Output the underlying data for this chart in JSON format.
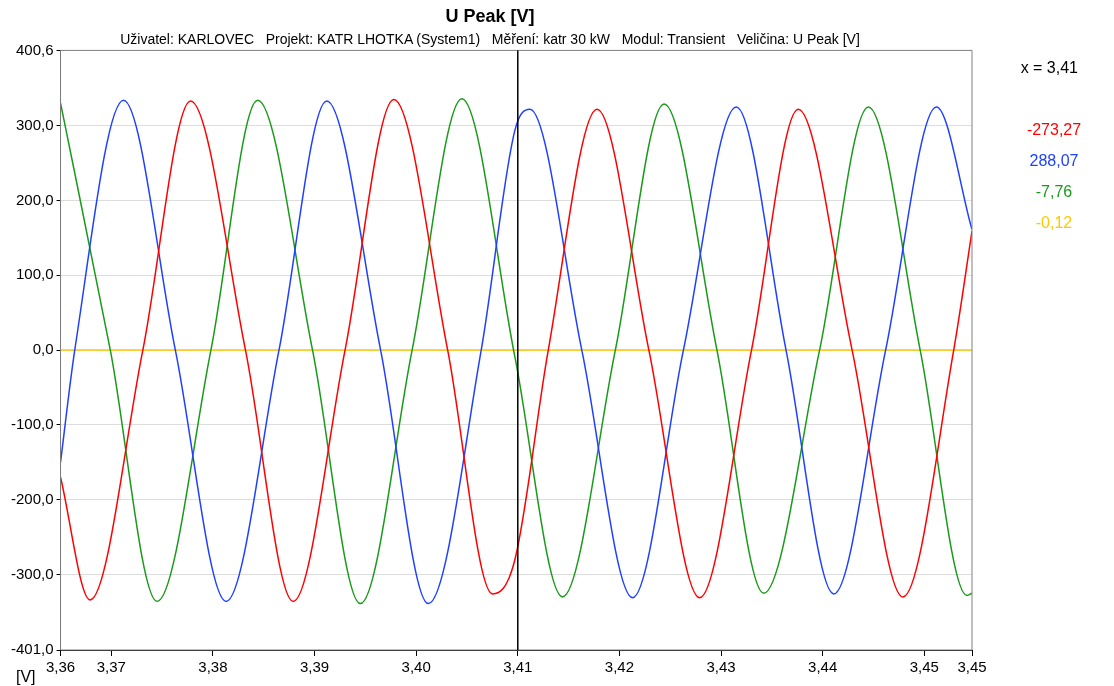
{
  "chart_data": {
    "type": "line",
    "title": "U Peak [V]",
    "subtitle": "Uživatel: KARLOVEC   Projekt: KATR LHOTKA (System1)   Měření: katr 30 kW   Modul: Transient   Veličina: U Peak [V]",
    "ylabel": "[V]",
    "xlim": [
      3.365,
      3.4547
    ],
    "xticks": [
      {
        "value": 3.365,
        "label": "3,36"
      },
      {
        "value": 3.37,
        "label": "3,37"
      },
      {
        "value": 3.38,
        "label": "3,38"
      },
      {
        "value": 3.39,
        "label": "3,39"
      },
      {
        "value": 3.4,
        "label": "3,40"
      },
      {
        "value": 3.41,
        "label": "3,41"
      },
      {
        "value": 3.42,
        "label": "3,42"
      },
      {
        "value": 3.43,
        "label": "3,43"
      },
      {
        "value": 3.44,
        "label": "3,44"
      },
      {
        "value": 3.45,
        "label": "3,45"
      },
      {
        "value": 3.4547,
        "label": "3,45"
      }
    ],
    "ylim": [
      -401,
      400.6
    ],
    "yticks": [
      {
        "value": -401,
        "label": "-401,0"
      },
      {
        "value": -300,
        "label": "-300,0"
      },
      {
        "value": -200,
        "label": "-200,0"
      },
      {
        "value": -100,
        "label": "-100,0"
      },
      {
        "value": 0,
        "label": "0,0"
      },
      {
        "value": 100,
        "label": "100,0"
      },
      {
        "value": 200,
        "label": "200,0"
      },
      {
        "value": 300,
        "label": "300,0"
      },
      {
        "value": 400.6,
        "label": "400,6"
      }
    ],
    "grid": "y",
    "legend": false,
    "ref_lines": [
      {
        "axis": "x",
        "value": 3.41,
        "label": "x = 3,41",
        "color": "#000000"
      }
    ],
    "annotations": [
      "-273,27",
      "288,07",
      "-7,76",
      "-0,12"
    ],
    "series": [
      {
        "color": "#ff0000",
        "x": [
          3.365,
          3.3679,
          3.3731,
          3.3778,
          3.3832,
          3.3879,
          3.393,
          3.3978,
          3.4031,
          3.4075,
          3.4097,
          3.413,
          3.4178,
          3.4229,
          3.4279,
          3.433,
          3.4376,
          3.4429,
          3.4479,
          3.4529,
          3.4547
        ],
        "values": [
          -170,
          -334,
          0,
          333,
          0,
          -336,
          0,
          335,
          0,
          -326,
          -281,
          0,
          322,
          0,
          -331,
          0,
          322,
          0,
          -330,
          0,
          159
        ]
      },
      {
        "color": "#2040ff",
        "x": [
          3.365,
          3.3664,
          3.3712,
          3.3763,
          3.3813,
          3.3865,
          3.3912,
          3.3965,
          3.4012,
          3.4064,
          3.4097,
          3.4112,
          3.4163,
          3.4213,
          3.4263,
          3.4315,
          3.4364,
          3.4411,
          3.4462,
          3.4512,
          3.4547
        ],
        "values": [
          -150,
          0,
          334,
          0,
          -336,
          0,
          333,
          0,
          -339,
          0,
          293,
          322,
          0,
          -331,
          0,
          325,
          0,
          -326,
          0,
          325,
          161
        ]
      },
      {
        "color": "#1a9a1a",
        "x": [
          3.365,
          3.3699,
          3.3745,
          3.3798,
          3.3844,
          3.3898,
          3.3945,
          3.3996,
          3.4045,
          3.4097,
          3.4144,
          3.4196,
          3.4244,
          3.4296,
          3.4342,
          3.4397,
          3.4445,
          3.4496,
          3.4542,
          3.4547
        ],
        "values": [
          330,
          0,
          -336,
          0,
          334,
          0,
          -339,
          0,
          336,
          -8,
          -330,
          0,
          329,
          0,
          -325,
          0,
          325,
          0,
          -328,
          -325
        ]
      },
      {
        "color": "#ffc800",
        "x": [
          3.365,
          3.4547
        ],
        "values": [
          0,
          0
        ]
      }
    ]
  }
}
